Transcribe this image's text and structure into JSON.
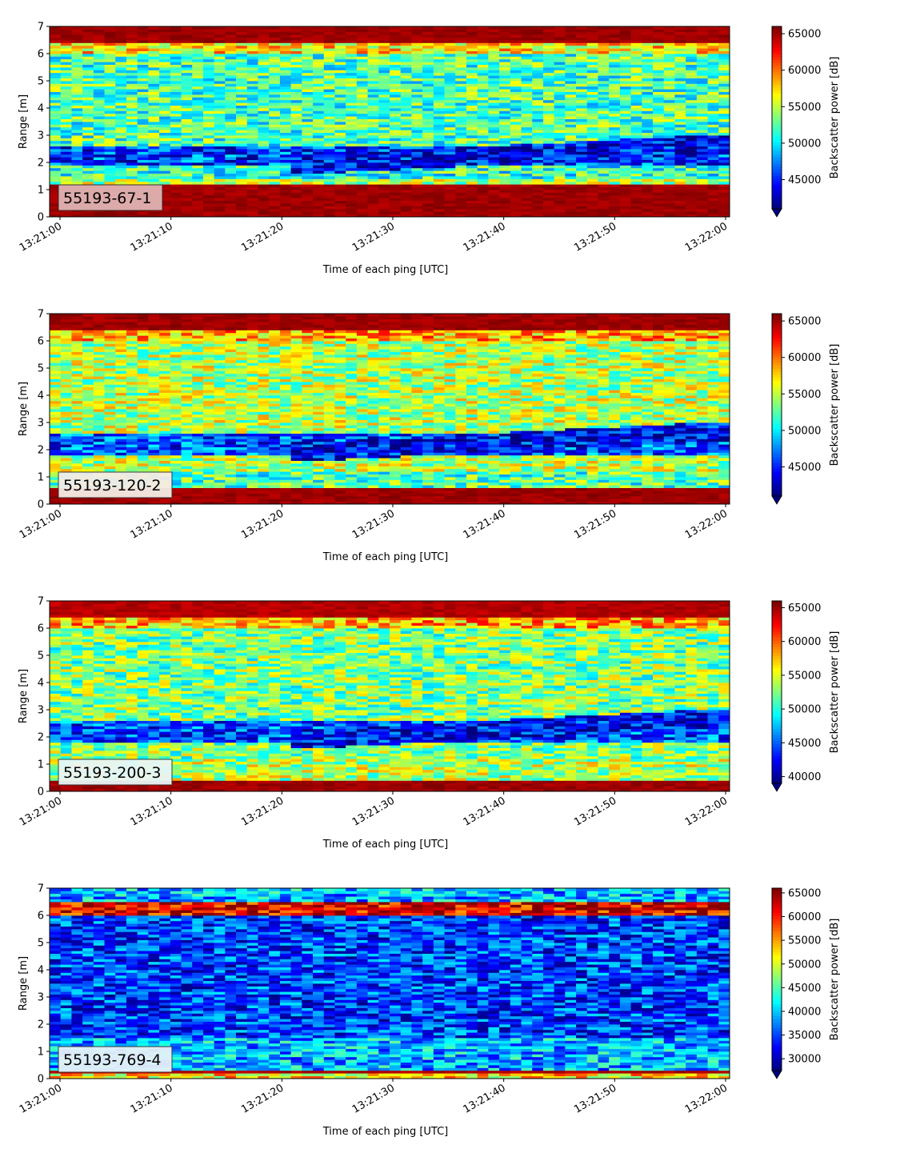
{
  "chart_data": [
    {
      "type": "heatmap",
      "label_box": "55193-67-1",
      "label_box_color": "#e0b4b4",
      "xlabel": "Time of each ping [UTC]",
      "ylabel": "Range [m]",
      "ylim": [
        0,
        7
      ],
      "yticks": [
        "0",
        "1",
        "2",
        "3",
        "4",
        "5",
        "6",
        "7"
      ],
      "xticks": [
        "13:21:00",
        "13:21:10",
        "13:21:20",
        "13:21:30",
        "13:21:40",
        "13:21:50",
        "13:22:00"
      ],
      "colorbar_label": "Backscatter power [dB]",
      "colorbar_range": [
        41000,
        66000
      ],
      "colorbar_ticks": [
        "45000",
        "50000",
        "55000",
        "60000",
        "65000"
      ],
      "colormap": "jet",
      "bands": [
        {
          "from": 0.0,
          "to": 1.2,
          "level": 0.97
        },
        {
          "from": 1.2,
          "to": 1.4,
          "level": 0.55
        },
        {
          "from": 1.4,
          "to": 1.9,
          "level": 0.42
        },
        {
          "from": 1.9,
          "to": 2.6,
          "level": 0.18,
          "trend": "dark layer ~2.2-2.9 m after 13:21:40"
        },
        {
          "from": 2.6,
          "to": 6.0,
          "level": 0.45
        },
        {
          "from": 6.0,
          "to": 6.4,
          "level": 0.65
        },
        {
          "from": 6.4,
          "to": 7.0,
          "level": 0.97
        }
      ]
    },
    {
      "type": "heatmap",
      "label_box": "55193-120-2",
      "label_box_color": "#f5ece6",
      "xlabel": "Time of each ping [UTC]",
      "ylabel": "Range [m]",
      "ylim": [
        0,
        7
      ],
      "yticks": [
        "0",
        "1",
        "2",
        "3",
        "4",
        "5",
        "6",
        "7"
      ],
      "xticks": [
        "13:21:00",
        "13:21:10",
        "13:21:20",
        "13:21:30",
        "13:21:40",
        "13:21:50",
        "13:22:00"
      ],
      "colorbar_label": "Backscatter power [dB]",
      "colorbar_range": [
        41000,
        66000
      ],
      "colorbar_ticks": [
        "45000",
        "50000",
        "55000",
        "60000",
        "65000"
      ],
      "colormap": "jet",
      "bands": [
        {
          "from": 0.0,
          "to": 0.6,
          "level": 0.97
        },
        {
          "from": 0.6,
          "to": 1.2,
          "level": 0.45
        },
        {
          "from": 1.2,
          "to": 1.8,
          "level": 0.55
        },
        {
          "from": 1.8,
          "to": 2.6,
          "level": 0.2
        },
        {
          "from": 2.6,
          "to": 6.0,
          "level": 0.55
        },
        {
          "from": 6.0,
          "to": 6.4,
          "level": 0.7
        },
        {
          "from": 6.4,
          "to": 7.0,
          "level": 0.97
        }
      ]
    },
    {
      "type": "heatmap",
      "label_box": "55193-200-3",
      "label_box_color": "#e9f6f6",
      "xlabel": "Time of each ping [UTC]",
      "ylabel": "Range [m]",
      "ylim": [
        0,
        7
      ],
      "yticks": [
        "0",
        "1",
        "2",
        "3",
        "4",
        "5",
        "6",
        "7"
      ],
      "xticks": [
        "13:21:00",
        "13:21:10",
        "13:21:20",
        "13:21:30",
        "13:21:40",
        "13:21:50",
        "13:22:00"
      ],
      "colorbar_label": "Backscatter power [dB]",
      "colorbar_range": [
        39000,
        66000
      ],
      "colorbar_ticks": [
        "40000",
        "45000",
        "50000",
        "55000",
        "60000",
        "65000"
      ],
      "colormap": "jet",
      "bands": [
        {
          "from": 0.0,
          "to": 0.4,
          "level": 0.97
        },
        {
          "from": 0.4,
          "to": 1.2,
          "level": 0.55
        },
        {
          "from": 1.2,
          "to": 1.8,
          "level": 0.5
        },
        {
          "from": 1.8,
          "to": 2.6,
          "level": 0.2
        },
        {
          "from": 2.6,
          "to": 6.0,
          "level": 0.5
        },
        {
          "from": 6.0,
          "to": 6.4,
          "level": 0.7
        },
        {
          "from": 6.4,
          "to": 7.0,
          "level": 0.95
        }
      ]
    },
    {
      "type": "heatmap",
      "label_box": "55193-769-4",
      "label_box_color": "#e6f1f8",
      "xlabel": "Time of each ping [UTC]",
      "ylabel": "Range [m]",
      "ylim": [
        0,
        7
      ],
      "yticks": [
        "0",
        "1",
        "2",
        "3",
        "4",
        "5",
        "6",
        "7"
      ],
      "xticks": [
        "13:21:00",
        "13:21:10",
        "13:21:20",
        "13:21:30",
        "13:21:40",
        "13:21:50",
        "13:22:00"
      ],
      "colorbar_label": "Backscatter power [dB]",
      "colorbar_range": [
        27500,
        66000
      ],
      "colorbar_ticks": [
        "30000",
        "35000",
        "40000",
        "45000",
        "50000",
        "55000",
        "60000",
        "65000"
      ],
      "colormap": "jet",
      "bands": [
        {
          "from": 0.0,
          "to": 0.2,
          "level": 0.65
        },
        {
          "from": 0.2,
          "to": 0.35,
          "level": 0.95
        },
        {
          "from": 0.35,
          "to": 1.5,
          "level": 0.3
        },
        {
          "from": 1.5,
          "to": 6.0,
          "level": 0.18
        },
        {
          "from": 6.0,
          "to": 6.5,
          "level": 0.9
        },
        {
          "from": 6.5,
          "to": 7.0,
          "level": 0.3
        }
      ]
    }
  ]
}
